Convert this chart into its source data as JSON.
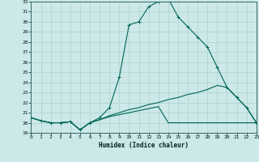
{
  "xlabel": "Humidex (Indice chaleur)",
  "bg_color": "#cce8e8",
  "grid_color": "#aad4d0",
  "line_color": "#006655",
  "xlim": [
    0,
    23
  ],
  "ylim": [
    19,
    32
  ],
  "xtick_labels": [
    "0",
    "1",
    "2",
    "3",
    "4",
    "5",
    "6",
    "7",
    "8",
    "9",
    "10",
    "11",
    "12",
    "13",
    "14",
    "15",
    "16",
    "17",
    "18",
    "19",
    "20",
    "21",
    "22",
    "23"
  ],
  "ytick_labels": [
    "19",
    "20",
    "21",
    "22",
    "23",
    "24",
    "25",
    "26",
    "27",
    "28",
    "29",
    "30",
    "31",
    "32"
  ],
  "curve1_x": [
    0,
    1,
    2,
    3,
    4,
    5,
    6,
    7,
    8,
    9,
    10,
    11,
    12,
    13,
    14,
    15,
    16,
    17,
    18,
    19,
    20,
    21,
    22,
    23
  ],
  "curve1_y": [
    20.5,
    20.2,
    20.0,
    20.0,
    20.1,
    19.3,
    20.0,
    20.5,
    21.5,
    24.5,
    29.7,
    30.0,
    31.5,
    32.0,
    32.3,
    30.5,
    29.5,
    28.5,
    27.5,
    25.5,
    23.5,
    22.5,
    21.5,
    20.0
  ],
  "curve2_x": [
    0,
    1,
    2,
    3,
    4,
    5,
    6,
    7,
    8,
    9,
    10,
    11,
    12,
    13,
    14,
    15,
    16,
    17,
    18,
    19,
    20,
    21,
    22,
    23
  ],
  "curve2_y": [
    20.5,
    20.2,
    20.0,
    20.0,
    20.1,
    19.3,
    20.0,
    20.3,
    20.7,
    21.0,
    21.3,
    21.5,
    21.8,
    22.0,
    22.3,
    22.5,
    22.8,
    23.0,
    23.3,
    23.7,
    23.5,
    22.5,
    21.5,
    20.0
  ],
  "curve3_x": [
    0,
    1,
    2,
    3,
    4,
    5,
    6,
    7,
    8,
    9,
    10,
    11,
    12,
    13,
    14,
    15,
    16,
    17,
    18,
    19,
    20,
    21,
    22,
    23
  ],
  "curve3_y": [
    20.5,
    20.2,
    20.0,
    20.0,
    20.1,
    19.3,
    20.0,
    20.3,
    20.6,
    20.8,
    21.0,
    21.2,
    21.4,
    21.6,
    20.0,
    20.0,
    20.0,
    20.0,
    20.0,
    20.0,
    20.0,
    20.0,
    20.0,
    20.0
  ]
}
